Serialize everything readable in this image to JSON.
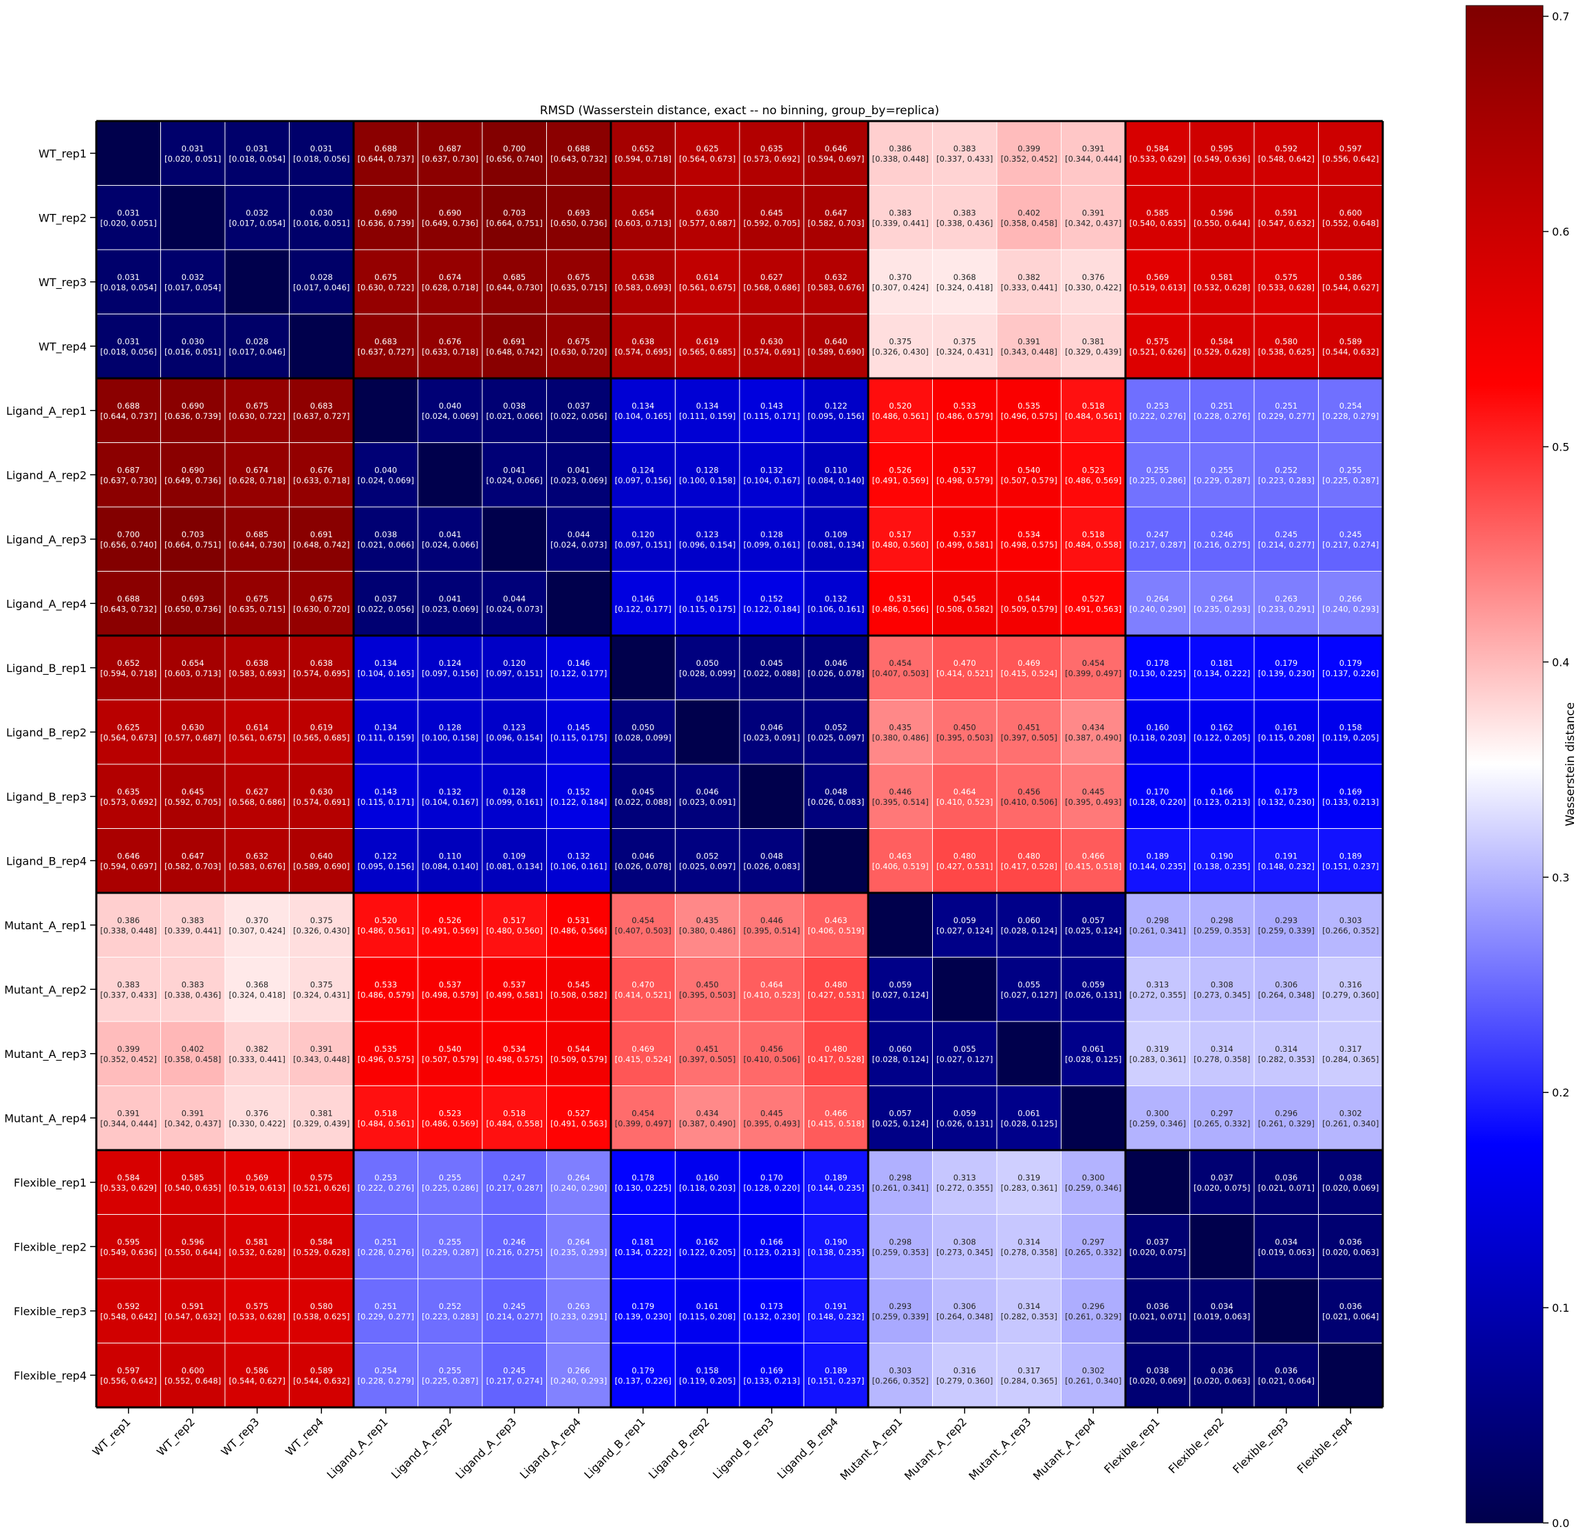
{
  "chart_data": {
    "type": "heatmap",
    "title": "RMSD (Wasserstein distance, exact -- no binning, group_by=replica)",
    "row_labels": [
      "WT_rep1",
      "WT_rep2",
      "WT_rep3",
      "WT_rep4",
      "Ligand_A_rep1",
      "Ligand_A_rep2",
      "Ligand_A_rep3",
      "Ligand_A_rep4",
      "Ligand_B_rep1",
      "Ligand_B_rep2",
      "Ligand_B_rep3",
      "Ligand_B_rep4",
      "Mutant_A_rep1",
      "Mutant_A_rep2",
      "Mutant_A_rep3",
      "Mutant_A_rep4",
      "Flexible_rep1",
      "Flexible_rep2",
      "Flexible_rep3",
      "Flexible_rep4"
    ],
    "col_labels": [
      "WT_rep1",
      "WT_rep2",
      "WT_rep3",
      "WT_rep4",
      "Ligand_A_rep1",
      "Ligand_A_rep2",
      "Ligand_A_rep3",
      "Ligand_A_rep4",
      "Ligand_B_rep1",
      "Ligand_B_rep2",
      "Ligand_B_rep3",
      "Ligand_B_rep4",
      "Mutant_A_rep1",
      "Mutant_A_rep2",
      "Mutant_A_rep3",
      "Mutant_A_rep4",
      "Flexible_rep1",
      "Flexible_rep2",
      "Flexible_rep3",
      "Flexible_rep4"
    ],
    "group_size": 4,
    "values": [
      [
        null,
        0.031,
        0.031,
        0.031,
        0.688,
        0.687,
        0.7,
        0.688,
        0.652,
        0.625,
        0.635,
        0.646,
        0.386,
        0.383,
        0.399,
        0.391,
        0.584,
        0.595,
        0.592,
        0.597
      ],
      [
        0.031,
        null,
        0.032,
        0.03,
        0.69,
        0.69,
        0.703,
        0.693,
        0.654,
        0.63,
        0.645,
        0.647,
        0.383,
        0.383,
        0.402,
        0.391,
        0.585,
        0.596,
        0.591,
        0.6
      ],
      [
        0.031,
        0.032,
        null,
        0.028,
        0.675,
        0.674,
        0.685,
        0.675,
        0.638,
        0.614,
        0.627,
        0.632,
        0.37,
        0.368,
        0.382,
        0.376,
        0.569,
        0.581,
        0.575,
        0.586
      ],
      [
        0.031,
        0.03,
        0.028,
        null,
        0.683,
        0.676,
        0.691,
        0.675,
        0.638,
        0.619,
        0.63,
        0.64,
        0.375,
        0.375,
        0.391,
        0.381,
        0.575,
        0.584,
        0.58,
        0.589
      ],
      [
        0.688,
        0.69,
        0.675,
        0.683,
        null,
        0.04,
        0.038,
        0.037,
        0.134,
        0.134,
        0.143,
        0.122,
        0.52,
        0.533,
        0.535,
        0.518,
        0.253,
        0.251,
        0.251,
        0.254
      ],
      [
        0.687,
        0.69,
        0.674,
        0.676,
        0.04,
        null,
        0.041,
        0.041,
        0.124,
        0.128,
        0.132,
        0.11,
        0.526,
        0.537,
        0.54,
        0.523,
        0.255,
        0.255,
        0.252,
        0.255
      ],
      [
        0.7,
        0.703,
        0.685,
        0.691,
        0.038,
        0.041,
        null,
        0.044,
        0.12,
        0.123,
        0.128,
        0.109,
        0.517,
        0.537,
        0.534,
        0.518,
        0.247,
        0.246,
        0.245,
        0.245
      ],
      [
        0.688,
        0.693,
        0.675,
        0.675,
        0.037,
        0.041,
        0.044,
        null,
        0.146,
        0.145,
        0.152,
        0.132,
        0.531,
        0.545,
        0.544,
        0.527,
        0.264,
        0.264,
        0.263,
        0.266
      ],
      [
        0.652,
        0.654,
        0.638,
        0.638,
        0.134,
        0.124,
        0.12,
        0.146,
        null,
        0.05,
        0.045,
        0.046,
        0.454,
        0.47,
        0.469,
        0.454,
        0.178,
        0.181,
        0.179,
        0.179
      ],
      [
        0.625,
        0.63,
        0.614,
        0.619,
        0.134,
        0.128,
        0.123,
        0.145,
        0.05,
        null,
        0.046,
        0.052,
        0.435,
        0.45,
        0.451,
        0.434,
        0.16,
        0.162,
        0.161,
        0.158
      ],
      [
        0.635,
        0.645,
        0.627,
        0.63,
        0.143,
        0.132,
        0.128,
        0.152,
        0.045,
        0.046,
        null,
        0.048,
        0.446,
        0.464,
        0.456,
        0.445,
        0.17,
        0.166,
        0.173,
        0.169
      ],
      [
        0.646,
        0.647,
        0.632,
        0.64,
        0.122,
        0.11,
        0.109,
        0.132,
        0.046,
        0.052,
        0.048,
        null,
        0.463,
        0.48,
        0.48,
        0.466,
        0.189,
        0.19,
        0.191,
        0.189
      ],
      [
        0.386,
        0.383,
        0.37,
        0.375,
        0.52,
        0.526,
        0.517,
        0.531,
        0.454,
        0.435,
        0.446,
        0.463,
        null,
        0.059,
        0.06,
        0.057,
        0.298,
        0.298,
        0.293,
        0.303
      ],
      [
        0.383,
        0.383,
        0.368,
        0.375,
        0.533,
        0.537,
        0.537,
        0.545,
        0.47,
        0.45,
        0.464,
        0.48,
        0.059,
        null,
        0.055,
        0.059,
        0.313,
        0.308,
        0.306,
        0.316
      ],
      [
        0.399,
        0.402,
        0.382,
        0.391,
        0.535,
        0.54,
        0.534,
        0.544,
        0.469,
        0.451,
        0.456,
        0.48,
        0.06,
        0.055,
        null,
        0.061,
        0.319,
        0.314,
        0.314,
        0.317
      ],
      [
        0.391,
        0.391,
        0.376,
        0.381,
        0.518,
        0.523,
        0.518,
        0.527,
        0.454,
        0.434,
        0.445,
        0.466,
        0.057,
        0.059,
        0.061,
        null,
        0.3,
        0.297,
        0.296,
        0.302
      ],
      [
        0.584,
        0.585,
        0.569,
        0.575,
        0.253,
        0.255,
        0.247,
        0.264,
        0.178,
        0.16,
        0.17,
        0.189,
        0.298,
        0.313,
        0.319,
        0.3,
        null,
        0.037,
        0.036,
        0.038
      ],
      [
        0.595,
        0.596,
        0.581,
        0.584,
        0.251,
        0.255,
        0.246,
        0.264,
        0.181,
        0.162,
        0.166,
        0.19,
        0.298,
        0.308,
        0.314,
        0.297,
        0.037,
        null,
        0.034,
        0.036
      ],
      [
        0.592,
        0.591,
        0.575,
        0.58,
        0.251,
        0.252,
        0.245,
        0.263,
        0.179,
        0.161,
        0.173,
        0.191,
        0.293,
        0.306,
        0.314,
        0.296,
        0.036,
        0.034,
        null,
        0.036
      ],
      [
        0.597,
        0.6,
        0.586,
        0.589,
        0.254,
        0.255,
        0.245,
        0.266,
        0.179,
        0.158,
        0.169,
        0.189,
        0.303,
        0.316,
        0.317,
        0.302,
        0.038,
        0.036,
        0.036,
        null
      ]
    ],
    "intervals": [
      [
        null,
        "[0.020, 0.051]",
        "[0.018, 0.054]",
        "[0.018, 0.056]",
        "[0.644, 0.737]",
        "[0.637, 0.730]",
        "[0.656, 0.740]",
        "[0.643, 0.732]",
        "[0.594, 0.718]",
        "[0.564, 0.673]",
        "[0.573, 0.692]",
        "[0.594, 0.697]",
        "[0.338, 0.448]",
        "[0.337, 0.433]",
        "[0.352, 0.452]",
        "[0.344, 0.444]",
        "[0.533, 0.629]",
        "[0.549, 0.636]",
        "[0.548, 0.642]",
        "[0.556, 0.642]"
      ],
      [
        "[0.020, 0.051]",
        null,
        "[0.017, 0.054]",
        "[0.016, 0.051]",
        "[0.636, 0.739]",
        "[0.649, 0.736]",
        "[0.664, 0.751]",
        "[0.650, 0.736]",
        "[0.603, 0.713]",
        "[0.577, 0.687]",
        "[0.592, 0.705]",
        "[0.582, 0.703]",
        "[0.339, 0.441]",
        "[0.338, 0.436]",
        "[0.358, 0.458]",
        "[0.342, 0.437]",
        "[0.540, 0.635]",
        "[0.550, 0.644]",
        "[0.547, 0.632]",
        "[0.552, 0.648]"
      ],
      [
        "[0.018, 0.054]",
        "[0.017, 0.054]",
        null,
        "[0.017, 0.046]",
        "[0.630, 0.722]",
        "[0.628, 0.718]",
        "[0.644, 0.730]",
        "[0.635, 0.715]",
        "[0.583, 0.693]",
        "[0.561, 0.675]",
        "[0.568, 0.686]",
        "[0.583, 0.676]",
        "[0.307, 0.424]",
        "[0.324, 0.418]",
        "[0.333, 0.441]",
        "[0.330, 0.422]",
        "[0.519, 0.613]",
        "[0.532, 0.628]",
        "[0.533, 0.628]",
        "[0.544, 0.627]"
      ],
      [
        "[0.018, 0.056]",
        "[0.016, 0.051]",
        "[0.017, 0.046]",
        null,
        "[0.637, 0.727]",
        "[0.633, 0.718]",
        "[0.648, 0.742]",
        "[0.630, 0.720]",
        "[0.574, 0.695]",
        "[0.565, 0.685]",
        "[0.574, 0.691]",
        "[0.589, 0.690]",
        "[0.326, 0.430]",
        "[0.324, 0.431]",
        "[0.343, 0.448]",
        "[0.329, 0.439]",
        "[0.521, 0.626]",
        "[0.529, 0.628]",
        "[0.538, 0.625]",
        "[0.544, 0.632]"
      ],
      [
        "[0.644, 0.737]",
        "[0.636, 0.739]",
        "[0.630, 0.722]",
        "[0.637, 0.727]",
        null,
        "[0.024, 0.069]",
        "[0.021, 0.066]",
        "[0.022, 0.056]",
        "[0.104, 0.165]",
        "[0.111, 0.159]",
        "[0.115, 0.171]",
        "[0.095, 0.156]",
        "[0.486, 0.561]",
        "[0.486, 0.579]",
        "[0.496, 0.575]",
        "[0.484, 0.561]",
        "[0.222, 0.276]",
        "[0.228, 0.276]",
        "[0.229, 0.277]",
        "[0.228, 0.279]"
      ],
      [
        "[0.637, 0.730]",
        "[0.649, 0.736]",
        "[0.628, 0.718]",
        "[0.633, 0.718]",
        "[0.024, 0.069]",
        null,
        "[0.024, 0.066]",
        "[0.023, 0.069]",
        "[0.097, 0.156]",
        "[0.100, 0.158]",
        "[0.104, 0.167]",
        "[0.084, 0.140]",
        "[0.491, 0.569]",
        "[0.498, 0.579]",
        "[0.507, 0.579]",
        "[0.486, 0.569]",
        "[0.225, 0.286]",
        "[0.229, 0.287]",
        "[0.223, 0.283]",
        "[0.225, 0.287]"
      ],
      [
        "[0.656, 0.740]",
        "[0.664, 0.751]",
        "[0.644, 0.730]",
        "[0.648, 0.742]",
        "[0.021, 0.066]",
        "[0.024, 0.066]",
        null,
        "[0.024, 0.073]",
        "[0.097, 0.151]",
        "[0.096, 0.154]",
        "[0.099, 0.161]",
        "[0.081, 0.134]",
        "[0.480, 0.560]",
        "[0.499, 0.581]",
        "[0.498, 0.575]",
        "[0.484, 0.558]",
        "[0.217, 0.287]",
        "[0.216, 0.275]",
        "[0.214, 0.277]",
        "[0.217, 0.274]"
      ],
      [
        "[0.643, 0.732]",
        "[0.650, 0.736]",
        "[0.635, 0.715]",
        "[0.630, 0.720]",
        "[0.022, 0.056]",
        "[0.023, 0.069]",
        "[0.024, 0.073]",
        null,
        "[0.122, 0.177]",
        "[0.115, 0.175]",
        "[0.122, 0.184]",
        "[0.106, 0.161]",
        "[0.486, 0.566]",
        "[0.508, 0.582]",
        "[0.509, 0.579]",
        "[0.491, 0.563]",
        "[0.240, 0.290]",
        "[0.235, 0.293]",
        "[0.233, 0.291]",
        "[0.240, 0.293]"
      ],
      [
        "[0.594, 0.718]",
        "[0.603, 0.713]",
        "[0.583, 0.693]",
        "[0.574, 0.695]",
        "[0.104, 0.165]",
        "[0.097, 0.156]",
        "[0.097, 0.151]",
        "[0.122, 0.177]",
        null,
        "[0.028, 0.099]",
        "[0.022, 0.088]",
        "[0.026, 0.078]",
        "[0.407, 0.503]",
        "[0.414, 0.521]",
        "[0.415, 0.524]",
        "[0.399, 0.497]",
        "[0.130, 0.225]",
        "[0.134, 0.222]",
        "[0.139, 0.230]",
        "[0.137, 0.226]"
      ],
      [
        "[0.564, 0.673]",
        "[0.577, 0.687]",
        "[0.561, 0.675]",
        "[0.565, 0.685]",
        "[0.111, 0.159]",
        "[0.100, 0.158]",
        "[0.096, 0.154]",
        "[0.115, 0.175]",
        "[0.028, 0.099]",
        null,
        "[0.023, 0.091]",
        "[0.025, 0.097]",
        "[0.380, 0.486]",
        "[0.395, 0.503]",
        "[0.397, 0.505]",
        "[0.387, 0.490]",
        "[0.118, 0.203]",
        "[0.122, 0.205]",
        "[0.115, 0.208]",
        "[0.119, 0.205]"
      ],
      [
        "[0.573, 0.692]",
        "[0.592, 0.705]",
        "[0.568, 0.686]",
        "[0.574, 0.691]",
        "[0.115, 0.171]",
        "[0.104, 0.167]",
        "[0.099, 0.161]",
        "[0.122, 0.184]",
        "[0.022, 0.088]",
        "[0.023, 0.091]",
        null,
        "[0.026, 0.083]",
        "[0.395, 0.514]",
        "[0.410, 0.523]",
        "[0.410, 0.506]",
        "[0.395, 0.493]",
        "[0.128, 0.220]",
        "[0.123, 0.213]",
        "[0.132, 0.230]",
        "[0.133, 0.213]"
      ],
      [
        "[0.594, 0.697]",
        "[0.582, 0.703]",
        "[0.583, 0.676]",
        "[0.589, 0.690]",
        "[0.095, 0.156]",
        "[0.084, 0.140]",
        "[0.081, 0.134]",
        "[0.106, 0.161]",
        "[0.026, 0.078]",
        "[0.025, 0.097]",
        "[0.026, 0.083]",
        null,
        "[0.406, 0.519]",
        "[0.427, 0.531]",
        "[0.417, 0.528]",
        "[0.415, 0.518]",
        "[0.144, 0.235]",
        "[0.138, 0.235]",
        "[0.148, 0.232]",
        "[0.151, 0.237]"
      ],
      [
        "[0.338, 0.448]",
        "[0.339, 0.441]",
        "[0.307, 0.424]",
        "[0.326, 0.430]",
        "[0.486, 0.561]",
        "[0.491, 0.569]",
        "[0.480, 0.560]",
        "[0.486, 0.566]",
        "[0.407, 0.503]",
        "[0.380, 0.486]",
        "[0.395, 0.514]",
        "[0.406, 0.519]",
        null,
        "[0.027, 0.124]",
        "[0.028, 0.124]",
        "[0.025, 0.124]",
        "[0.261, 0.341]",
        "[0.259, 0.353]",
        "[0.259, 0.339]",
        "[0.266, 0.352]"
      ],
      [
        "[0.337, 0.433]",
        "[0.338, 0.436]",
        "[0.324, 0.418]",
        "[0.324, 0.431]",
        "[0.486, 0.579]",
        "[0.498, 0.579]",
        "[0.499, 0.581]",
        "[0.508, 0.582]",
        "[0.414, 0.521]",
        "[0.395, 0.503]",
        "[0.410, 0.523]",
        "[0.427, 0.531]",
        "[0.027, 0.124]",
        null,
        "[0.027, 0.127]",
        "[0.026, 0.131]",
        "[0.272, 0.355]",
        "[0.273, 0.345]",
        "[0.264, 0.348]",
        "[0.279, 0.360]"
      ],
      [
        "[0.352, 0.452]",
        "[0.358, 0.458]",
        "[0.333, 0.441]",
        "[0.343, 0.448]",
        "[0.496, 0.575]",
        "[0.507, 0.579]",
        "[0.498, 0.575]",
        "[0.509, 0.579]",
        "[0.415, 0.524]",
        "[0.397, 0.505]",
        "[0.410, 0.506]",
        "[0.417, 0.528]",
        "[0.028, 0.124]",
        "[0.027, 0.127]",
        null,
        "[0.028, 0.125]",
        "[0.283, 0.361]",
        "[0.278, 0.358]",
        "[0.282, 0.353]",
        "[0.284, 0.365]"
      ],
      [
        "[0.344, 0.444]",
        "[0.342, 0.437]",
        "[0.330, 0.422]",
        "[0.329, 0.439]",
        "[0.484, 0.561]",
        "[0.486, 0.569]",
        "[0.484, 0.558]",
        "[0.491, 0.563]",
        "[0.399, 0.497]",
        "[0.387, 0.490]",
        "[0.395, 0.493]",
        "[0.415, 0.518]",
        "[0.025, 0.124]",
        "[0.026, 0.131]",
        "[0.028, 0.125]",
        null,
        "[0.259, 0.346]",
        "[0.265, 0.332]",
        "[0.261, 0.329]",
        "[0.261, 0.340]"
      ],
      [
        "[0.533, 0.629]",
        "[0.540, 0.635]",
        "[0.519, 0.613]",
        "[0.521, 0.626]",
        "[0.222, 0.276]",
        "[0.225, 0.286]",
        "[0.217, 0.287]",
        "[0.240, 0.290]",
        "[0.130, 0.225]",
        "[0.118, 0.203]",
        "[0.128, 0.220]",
        "[0.144, 0.235]",
        "[0.261, 0.341]",
        "[0.272, 0.355]",
        "[0.283, 0.361]",
        "[0.259, 0.346]",
        null,
        "[0.020, 0.075]",
        "[0.021, 0.071]",
        "[0.020, 0.069]"
      ],
      [
        "[0.549, 0.636]",
        "[0.550, 0.644]",
        "[0.532, 0.628]",
        "[0.529, 0.628]",
        "[0.228, 0.276]",
        "[0.229, 0.287]",
        "[0.216, 0.275]",
        "[0.235, 0.293]",
        "[0.134, 0.222]",
        "[0.122, 0.205]",
        "[0.123, 0.213]",
        "[0.138, 0.235]",
        "[0.259, 0.353]",
        "[0.273, 0.345]",
        "[0.278, 0.358]",
        "[0.265, 0.332]",
        "[0.020, 0.075]",
        null,
        "[0.019, 0.063]",
        "[0.020, 0.063]"
      ],
      [
        "[0.548, 0.642]",
        "[0.547, 0.632]",
        "[0.533, 0.628]",
        "[0.538, 0.625]",
        "[0.229, 0.277]",
        "[0.223, 0.283]",
        "[0.214, 0.277]",
        "[0.233, 0.291]",
        "[0.139, 0.230]",
        "[0.115, 0.208]",
        "[0.132, 0.230]",
        "[0.148, 0.232]",
        "[0.259, 0.339]",
        "[0.264, 0.348]",
        "[0.282, 0.353]",
        "[0.261, 0.329]",
        "[0.021, 0.071]",
        "[0.019, 0.063]",
        null,
        "[0.021, 0.064]"
      ],
      [
        "[0.556, 0.642]",
        "[0.552, 0.648]",
        "[0.544, 0.627]",
        "[0.544, 0.632]",
        "[0.228, 0.279]",
        "[0.225, 0.287]",
        "[0.217, 0.274]",
        "[0.240, 0.293]",
        "[0.137, 0.226]",
        "[0.119, 0.205]",
        "[0.133, 0.213]",
        "[0.151, 0.237]",
        "[0.266, 0.352]",
        "[0.279, 0.360]",
        "[0.284, 0.365]",
        "[0.261, 0.340]",
        "[0.020, 0.069]",
        "[0.020, 0.063]",
        "[0.021, 0.064]",
        null
      ]
    ],
    "diagonal_value": 0.0,
    "colorbar": {
      "label": "Wasserstein distance",
      "vmin": 0.0,
      "vmax": 0.705,
      "ticks": [
        0.0,
        0.1,
        0.2,
        0.3,
        0.4,
        0.5,
        0.6,
        0.7
      ],
      "tick_labels": [
        "0.0",
        "0.1",
        "0.2",
        "0.3",
        "0.4",
        "0.5",
        "0.6",
        "0.7"
      ],
      "colormap": "seismic",
      "colormap_stops": [
        "#00004c",
        "#0000ff",
        "#ffffff",
        "#ff0000",
        "#7f0000"
      ]
    },
    "grid": true,
    "legend": "colorbar-right"
  }
}
